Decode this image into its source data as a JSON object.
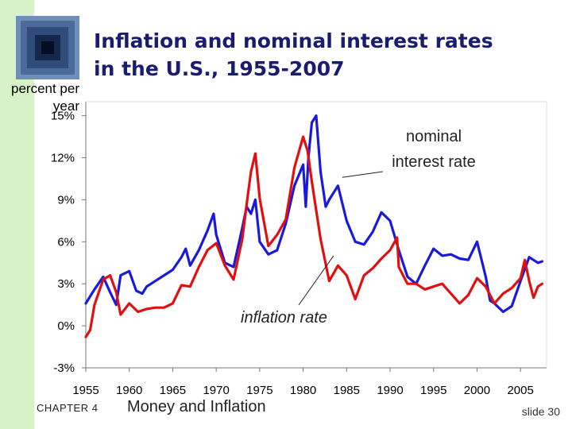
{
  "slide": {
    "title_line1": "Inflation and nominal interest rates",
    "title_line2": "in the U.S., 1955-2007",
    "chapter": "CHAPTER 4",
    "topic": "Money and Inflation",
    "slide_number": "slide 30",
    "sidebar_color": "#d7f2c9",
    "title_color": "#1a1d6e"
  },
  "chart_data": {
    "type": "line",
    "title": "Inflation and nominal interest rates in the U.S., 1955-2007",
    "ylabel": "percent per year",
    "xlabel": "",
    "xlim": [
      1955,
      2008
    ],
    "ylim": [
      -3,
      16
    ],
    "grid": false,
    "x_ticks": [
      1955,
      1960,
      1965,
      1970,
      1975,
      1980,
      1985,
      1990,
      1995,
      2000,
      2005
    ],
    "x_tick_labels": [
      "1955",
      "1960",
      "1965",
      "1970",
      "1975",
      "1980",
      "1985",
      "1990",
      "1995",
      "2000",
      "2005"
    ],
    "y_ticks": [
      15,
      12,
      9,
      6,
      3,
      0,
      -3
    ],
    "y_tick_labels": [
      "15%",
      "12%",
      "9%",
      "6%",
      "3%",
      "0%",
      "-3%"
    ],
    "annotations": [
      {
        "text": "nominal interest rate",
        "line1": "nominal",
        "line2": "interest rate",
        "points_to": [
          1984.5,
          10.6
        ]
      },
      {
        "text": "inflation rate",
        "points_to": [
          1983.5,
          5.0
        ]
      }
    ],
    "series": [
      {
        "name": "nominal interest rate",
        "color": "#1a1adc",
        "x": [
          1955,
          1956,
          1957,
          1957.8,
          1958.5,
          1959,
          1960,
          1960.8,
          1961.5,
          1962,
          1963,
          1964,
          1965,
          1966,
          1966.5,
          1967,
          1968,
          1969,
          1969.7,
          1970,
          1971,
          1972,
          1973,
          1973.5,
          1974,
          1974.5,
          1975,
          1976,
          1977,
          1978,
          1979,
          1980,
          1980.3,
          1980.6,
          1981,
          1981.5,
          1982,
          1982.6,
          1983,
          1984,
          1985,
          1986,
          1987,
          1988,
          1989,
          1990,
          1991,
          1992,
          1993,
          1994,
          1995,
          1996,
          1997,
          1998,
          1999,
          2000,
          2001,
          2001.5,
          2002,
          2003,
          2004,
          2005,
          2006,
          2007,
          2007.5
        ],
        "y": [
          1.6,
          2.6,
          3.5,
          2.4,
          1.5,
          3.6,
          3.9,
          2.5,
          2.3,
          2.8,
          3.2,
          3.6,
          4.0,
          4.9,
          5.5,
          4.3,
          5.4,
          6.8,
          8.0,
          6.5,
          4.5,
          4.2,
          7.0,
          8.5,
          8.0,
          9.0,
          6.0,
          5.1,
          5.4,
          7.3,
          10.0,
          11.5,
          8.5,
          12.0,
          14.5,
          15.0,
          11.0,
          8.5,
          9.0,
          10.0,
          7.5,
          6.0,
          5.8,
          6.7,
          8.1,
          7.5,
          5.4,
          3.5,
          3.0,
          4.3,
          5.5,
          5.0,
          5.1,
          4.8,
          4.7,
          6.0,
          3.5,
          1.8,
          1.6,
          1.0,
          1.4,
          3.2,
          4.9,
          4.5,
          4.6
        ]
      },
      {
        "name": "inflation rate",
        "color": "#e01010",
        "x": [
          1955,
          1955.5,
          1956,
          1957,
          1957.8,
          1958.5,
          1959,
          1960,
          1961,
          1962,
          1963,
          1964,
          1965,
          1966,
          1967,
          1968,
          1969,
          1970,
          1971,
          1972,
          1973,
          1973.5,
          1974,
          1974.5,
          1975,
          1976,
          1977,
          1978,
          1979,
          1980,
          1980.5,
          1981,
          1982,
          1983,
          1984,
          1985,
          1986,
          1987,
          1988,
          1989,
          1990,
          1990.8,
          1991,
          1992,
          1993,
          1994,
          1995,
          1996,
          1997,
          1998,
          1999,
          2000,
          2001,
          2002,
          2003,
          2004,
          2005,
          2005.5,
          2006,
          2006.5,
          2007,
          2007.5
        ],
        "y": [
          -0.8,
          -0.3,
          1.5,
          3.3,
          3.6,
          2.4,
          0.8,
          1.6,
          1.0,
          1.2,
          1.3,
          1.3,
          1.6,
          2.9,
          2.8,
          4.2,
          5.4,
          5.9,
          4.3,
          3.3,
          6.2,
          8.7,
          11.0,
          12.3,
          9.1,
          5.7,
          6.5,
          7.6,
          11.3,
          13.5,
          12.5,
          10.3,
          6.2,
          3.2,
          4.3,
          3.6,
          1.9,
          3.6,
          4.1,
          4.8,
          5.4,
          6.3,
          4.2,
          3.0,
          3.0,
          2.6,
          2.8,
          3.0,
          2.3,
          1.6,
          2.2,
          3.4,
          2.8,
          1.6,
          2.3,
          2.7,
          3.4,
          4.7,
          3.2,
          2.0,
          2.8,
          3.0
        ]
      }
    ]
  }
}
